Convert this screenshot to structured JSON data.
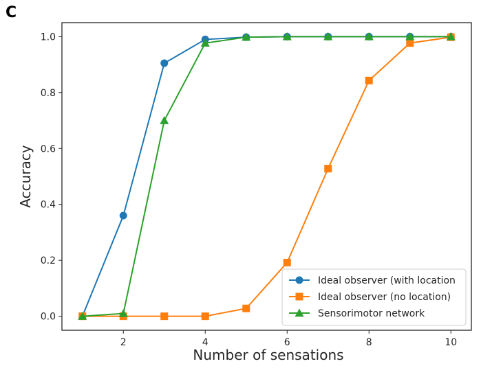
{
  "panel_label": "C",
  "chart_data": {
    "type": "line",
    "title": "",
    "xlabel": "Number of sensations",
    "ylabel": "Accuracy",
    "xlim": [
      0.5,
      10.5
    ],
    "ylim": [
      -0.05,
      1.05
    ],
    "xticks": [
      2,
      4,
      6,
      8,
      10
    ],
    "xtick_labels": [
      "2",
      "4",
      "6",
      "8",
      "10"
    ],
    "yticks": [
      0.0,
      0.2,
      0.4,
      0.6,
      0.8,
      1.0
    ],
    "ytick_labels": [
      "0.0",
      "0.2",
      "0.4",
      "0.6",
      "0.8",
      "1.0"
    ],
    "grid": false,
    "legend_position": "bottom-right",
    "x": [
      1,
      2,
      3,
      4,
      5,
      6,
      7,
      8,
      9,
      10
    ],
    "series": [
      {
        "name": "Ideal observer (with location",
        "color": "#1f77b4",
        "marker": "circle",
        "values": [
          0.0,
          0.36,
          0.905,
          0.99,
          0.998,
          1.0,
          1.0,
          1.0,
          1.0,
          1.0
        ]
      },
      {
        "name": "Ideal observer (no location)",
        "color": "#ff7f0e",
        "marker": "square",
        "values": [
          0.0,
          0.0,
          0.0,
          0.0,
          0.028,
          0.192,
          0.528,
          0.843,
          0.977,
          0.998
        ]
      },
      {
        "name": "Sensorimotor network",
        "color": "#2ca02c",
        "marker": "triangle",
        "values": [
          0.0,
          0.01,
          0.7,
          0.977,
          0.998,
          1.0,
          1.0,
          1.0,
          1.0,
          1.0
        ]
      }
    ]
  }
}
